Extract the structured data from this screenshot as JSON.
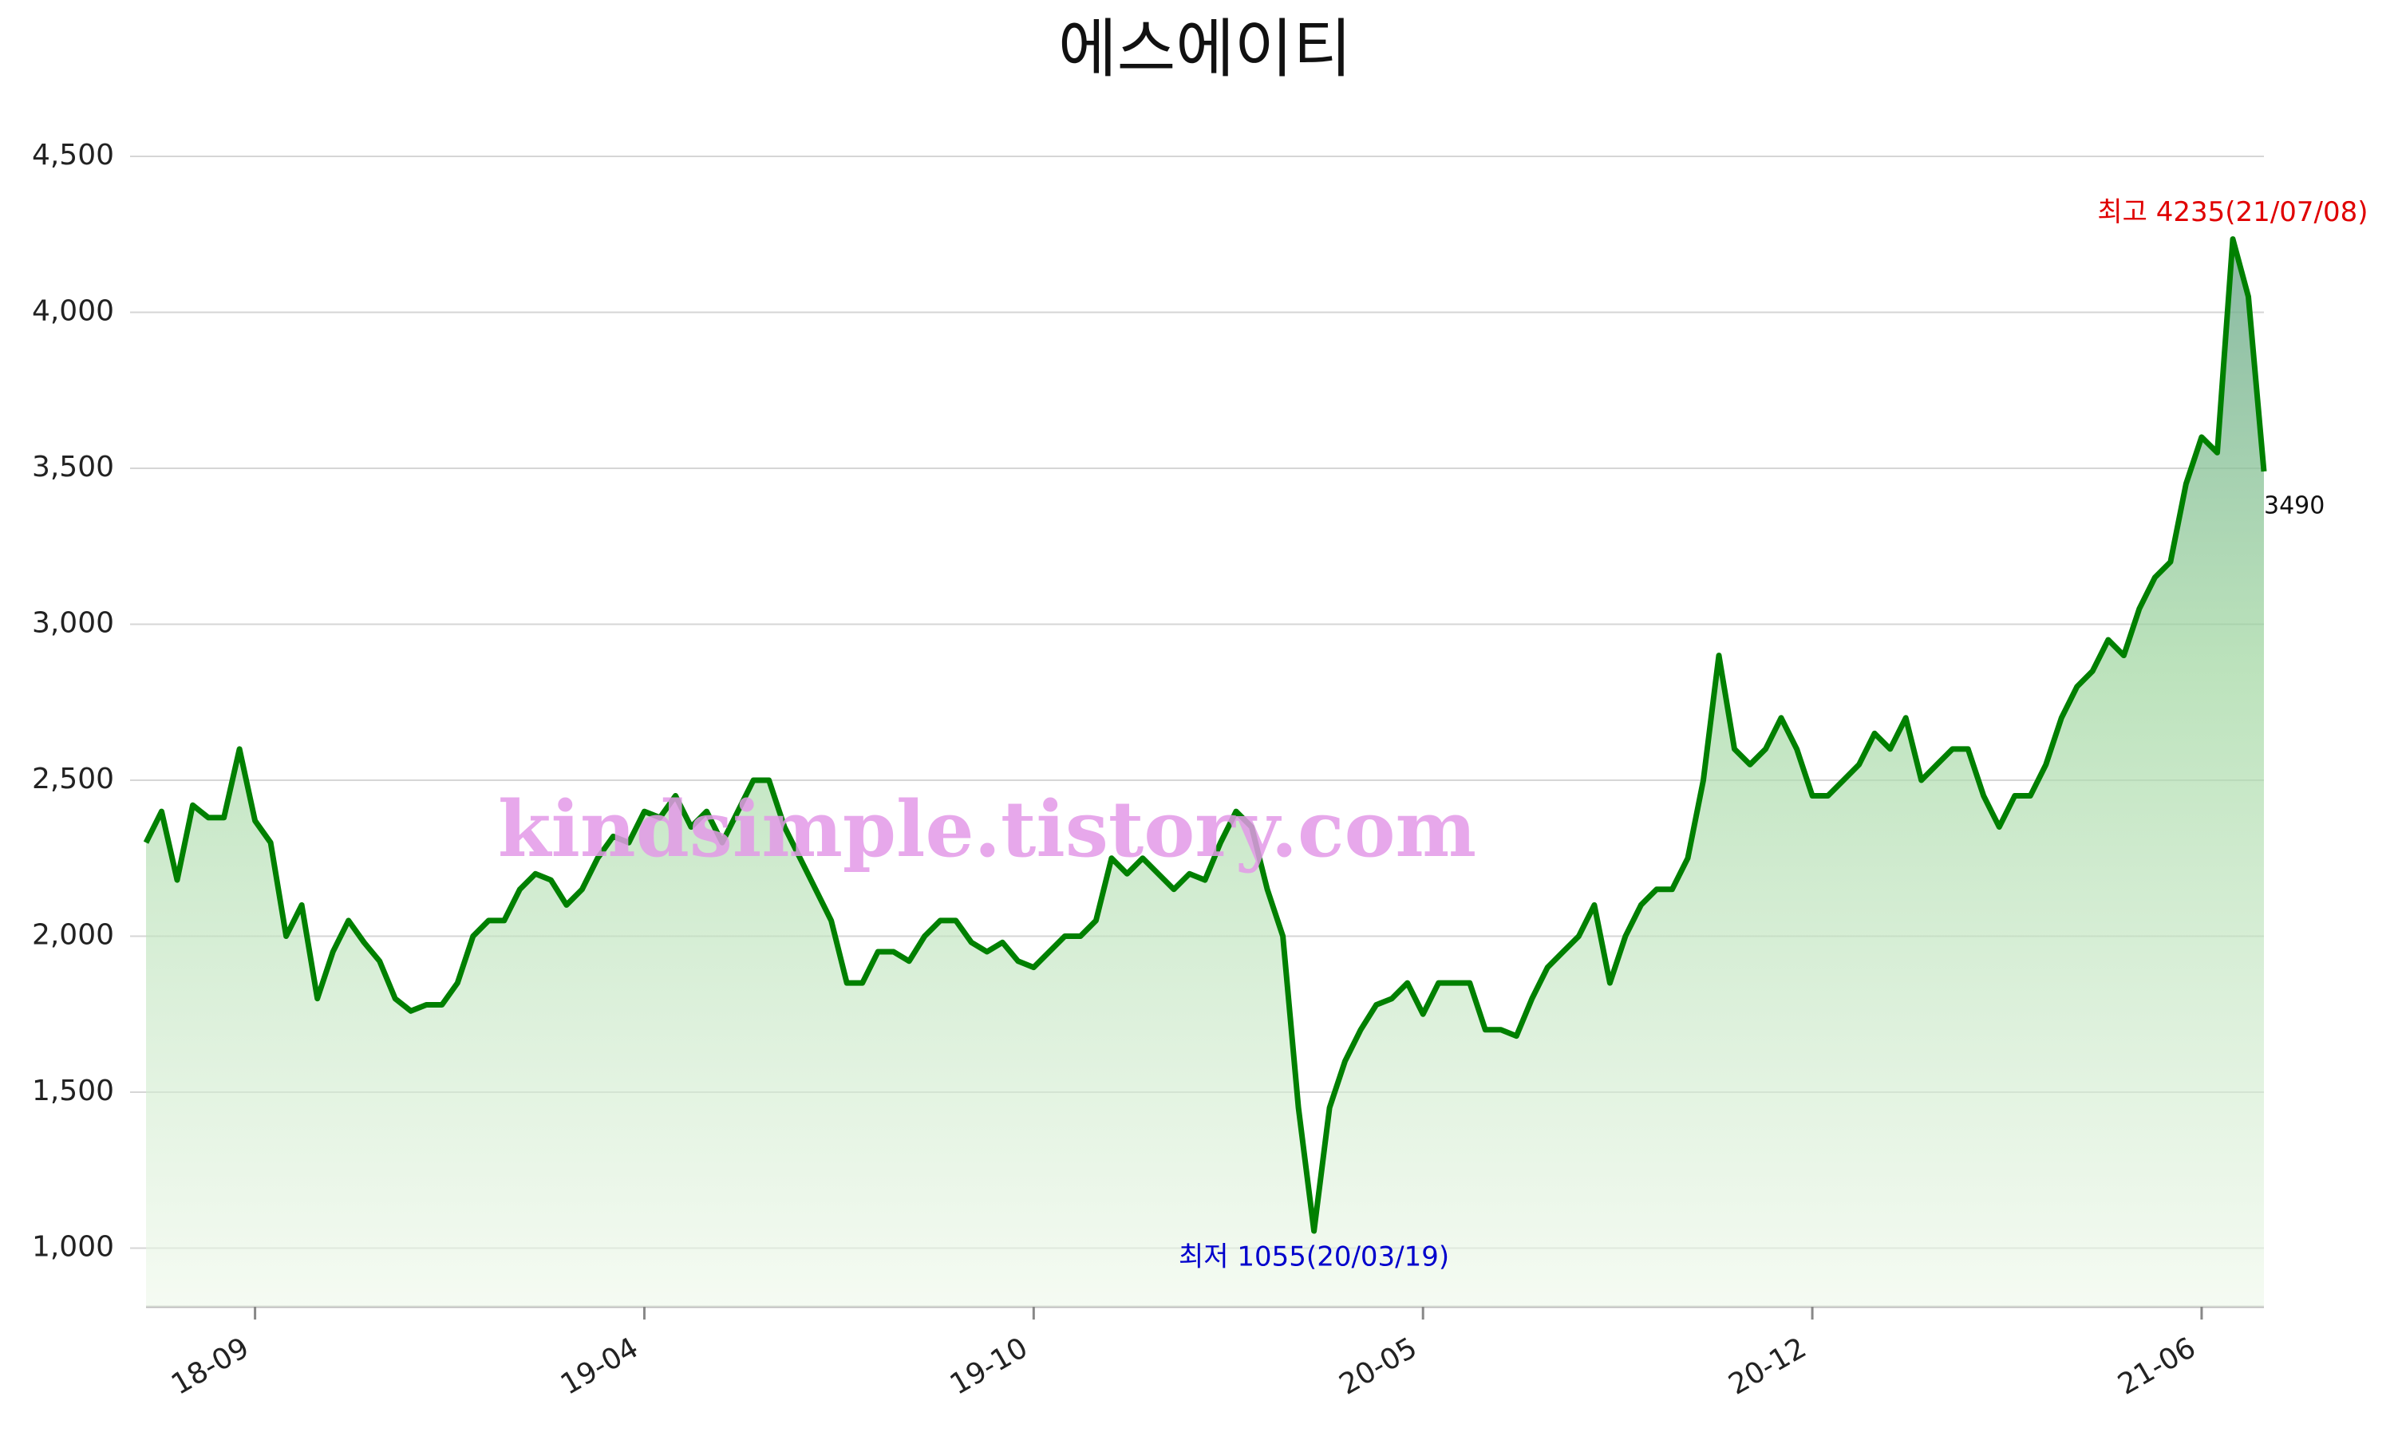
{
  "chart_data": {
    "type": "area",
    "title": "에스에이티",
    "categories": [
      null,
      null,
      null,
      null,
      null,
      null,
      null,
      "18-09",
      null,
      null,
      null,
      null,
      null,
      null,
      null,
      null,
      null,
      null,
      null,
      null,
      null,
      null,
      null,
      null,
      null,
      null,
      null,
      null,
      null,
      null,
      null,
      null,
      "19-04",
      null,
      null,
      null,
      null,
      null,
      null,
      null,
      null,
      null,
      null,
      null,
      null,
      null,
      null,
      null,
      null,
      null,
      null,
      null,
      null,
      null,
      null,
      null,
      null,
      "19-10",
      null,
      null,
      null,
      null,
      null,
      null,
      null,
      null,
      null,
      null,
      null,
      null,
      null,
      null,
      null,
      null,
      null,
      null,
      null,
      null,
      null,
      null,
      null,
      null,
      "20-05",
      null,
      null,
      null,
      null,
      null,
      null,
      null,
      null,
      null,
      null,
      null,
      null,
      null,
      null,
      null,
      null,
      null,
      null,
      null,
      null,
      null,
      null,
      null,
      null,
      "20-12",
      null,
      null,
      null,
      null,
      null,
      null,
      null,
      null,
      null,
      null,
      null,
      null,
      null,
      null,
      null,
      null,
      null,
      null,
      null,
      null,
      null,
      null,
      null,
      null,
      "21-06",
      null,
      null,
      null,
      null
    ],
    "series": [
      {
        "name": "에스에이티",
        "color": "#008000",
        "values": [
          2300,
          2400,
          2180,
          2420,
          2380,
          2380,
          2600,
          2370,
          2300,
          2000,
          2100,
          1800,
          1950,
          2050,
          1980,
          1920,
          1800,
          1760,
          1780,
          1780,
          1850,
          2000,
          2050,
          2050,
          2150,
          2200,
          2180,
          2100,
          2150,
          2250,
          2320,
          2300,
          2400,
          2380,
          2450,
          2350,
          2400,
          2300,
          2400,
          2500,
          2500,
          2350,
          2250,
          2150,
          2050,
          1850,
          1850,
          1950,
          1950,
          1920,
          2000,
          2050,
          2050,
          1980,
          1950,
          1980,
          1920,
          1900,
          1950,
          2000,
          2000,
          2050,
          2250,
          2200,
          2250,
          2200,
          2150,
          2200,
          2180,
          2300,
          2400,
          2350,
          2150,
          2000,
          1450,
          1055,
          1450,
          1600,
          1700,
          1780,
          1800,
          1850,
          1750,
          1850,
          1850,
          1850,
          1700,
          1700,
          1680,
          1800,
          1900,
          1950,
          2000,
          2100,
          1850,
          2000,
          2100,
          2150,
          2150,
          2250,
          2500,
          2900,
          2600,
          2550,
          2600,
          2700,
          2600,
          2450,
          2450,
          2500,
          2550,
          2650,
          2600,
          2700,
          2500,
          2550,
          2600,
          2600,
          2450,
          2350,
          2450,
          2450,
          2550,
          2700,
          2800,
          2850,
          2950,
          2900,
          3050,
          3150,
          3200,
          3450,
          3600,
          3550,
          4235,
          4050,
          3490
        ]
      }
    ],
    "ylim": [
      812,
      4500
    ],
    "yticks": [
      {
        "value": 1000,
        "label": "1,000"
      },
      {
        "value": 1500,
        "label": "1,500"
      },
      {
        "value": 2000,
        "label": "2,000"
      },
      {
        "value": 2500,
        "label": "2,500"
      },
      {
        "value": 3000,
        "label": "3,000"
      },
      {
        "value": 3500,
        "label": "3,500"
      },
      {
        "value": 4000,
        "label": "4,000"
      },
      {
        "value": 4500,
        "label": "4,500"
      }
    ],
    "grid": true,
    "annotations": [
      "최고 4235(21/07/08)",
      "최저 1055(20/03/19)"
    ],
    "watermark": "kindsimple.tistory.com"
  }
}
